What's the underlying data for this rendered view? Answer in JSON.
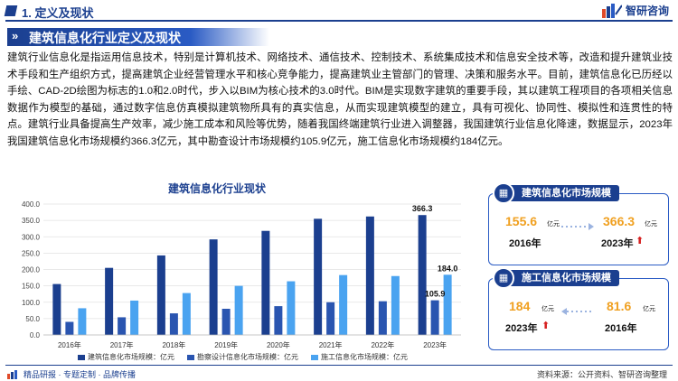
{
  "header": {
    "section": "1. 定义及现状",
    "brand": "智研咨询"
  },
  "banner": {
    "title": "建筑信息化行业定义及现状"
  },
  "paragraph": "建筑行业信息化是指运用信息技术，特别是计算机技术、网络技术、通信技术、控制技术、系统集成技术和信息安全技术等，改造和提升建筑业技术手段和生产组织方式，提高建筑企业经营管理水平和核心竞争能力，提高建筑业主管部门的管理、决策和服务水平。目前，建筑信息化已历经以手绘、CAD-2D绘图为标志的1.0和2.0时代，步入以BIM为核心技术的3.0时代。BIM是实现数字建筑的重要手段，其以建筑工程项目的各项相关信息数据作为模型的基础，通过数字信息仿真模拟建筑物所具有的真实信息，从而实现建筑模型的建立，具有可视化、协同性、模拟性和连贯性的特点。建筑行业具备提高生产效率，减少施工成本和风险等优势，随着我国终端建筑行业进入调整器，我国建筑行业信息化降速，数据显示，2023年我国建筑信息化市场规模约366.3亿元，其中勘查设计市场规模约105.9亿元，施工信息化市场规模约184亿元。",
  "chart_data": {
    "type": "bar",
    "title": "建筑信息化行业现状",
    "categories": [
      "2016年",
      "2017年",
      "2018年",
      "2019年",
      "2020年",
      "2021年",
      "2022年",
      "2023年"
    ],
    "series": [
      {
        "name": "建筑信息化市场规模：亿元",
        "color": "#1b3f8f",
        "values": [
          155.6,
          205,
          243,
          292,
          318,
          355,
          362,
          366.3
        ]
      },
      {
        "name": "勘察设计信息化市场规模：亿元",
        "color": "#2a55b0",
        "values": [
          40,
          54,
          66,
          80,
          88,
          100,
          103,
          105.9
        ]
      },
      {
        "name": "施工信息化市场规模：亿元",
        "color": "#4aa3f0",
        "values": [
          81.6,
          105,
          128,
          150,
          164,
          183,
          180,
          184
        ]
      }
    ],
    "yticks": [
      "0.0",
      "50.0",
      "100.0",
      "150.0",
      "200.0",
      "250.0",
      "300.0",
      "350.0",
      "400.0"
    ],
    "ylim": [
      0,
      400
    ],
    "data_labels": [
      {
        "series": 0,
        "index": 7,
        "text": "366.3"
      },
      {
        "series": 1,
        "index": 7,
        "text": "105.9"
      },
      {
        "series": 2,
        "index": 7,
        "text": "184.0"
      }
    ],
    "grid": true,
    "legend_position": "bottom"
  },
  "cards": [
    {
      "title": "建筑信息化市场规模",
      "left_value": "155.6",
      "left_unit": "亿元",
      "left_year": "2016年",
      "right_value": "366.3",
      "right_unit": "亿元",
      "right_year": "2023年",
      "icon": "building-icon"
    },
    {
      "title": "施工信息化市场规模",
      "left_value": "184",
      "left_unit": "亿元",
      "left_year": "2023年",
      "right_value": "81.6",
      "right_unit": "亿元",
      "right_year": "2016年",
      "icon": "building-icon"
    }
  ],
  "footer": {
    "left": "精品研报 · 专题定制 · 品牌传播",
    "right": "资料来源：公开资料、智研咨询整理"
  },
  "colors": {
    "primary": "#1b3f8f",
    "accent": "#f0a020",
    "up_arrow": "#d62020"
  }
}
